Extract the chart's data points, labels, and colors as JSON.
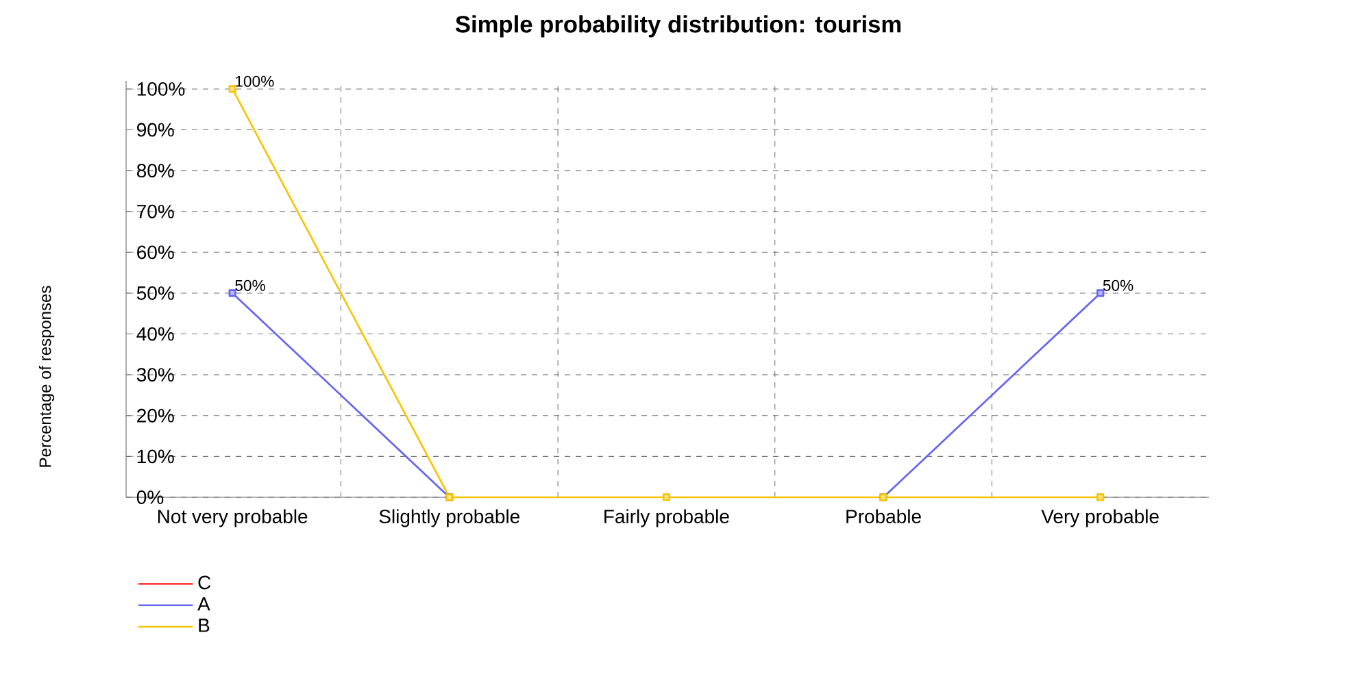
{
  "chart_data": {
    "type": "line",
    "title": "Simple probability distribution: tourism",
    "ylabel": "Percentage of responses",
    "categories": [
      "Not very probable",
      "Slightly probable",
      "Fairly probable",
      "Probable",
      "Very probable"
    ],
    "series": [
      {
        "name": "C",
        "color": "#ff4040",
        "values": [
          null,
          null,
          null,
          null,
          null
        ]
      },
      {
        "name": "A",
        "color": "#6464f5",
        "values": [
          50,
          0,
          null,
          0,
          50
        ],
        "value_labels": [
          "50%",
          null,
          null,
          null,
          "50%"
        ]
      },
      {
        "name": "B",
        "color": "#f7c400",
        "values": [
          100,
          0,
          0,
          0,
          0
        ],
        "value_labels": [
          "100%",
          null,
          null,
          null,
          null
        ]
      }
    ],
    "ylim": [
      0,
      102
    ],
    "yticks": [
      {
        "value": 0,
        "label": "0%"
      },
      {
        "value": 10,
        "label": "10%"
      },
      {
        "value": 20,
        "label": "20%"
      },
      {
        "value": 30,
        "label": "30%"
      },
      {
        "value": 40,
        "label": "40%"
      },
      {
        "value": 50,
        "label": "50%"
      },
      {
        "value": 60,
        "label": "60%"
      },
      {
        "value": 70,
        "label": "70%"
      },
      {
        "value": 80,
        "label": "80%"
      },
      {
        "value": 90,
        "label": "90%"
      },
      {
        "value": 100,
        "label": "100%"
      }
    ],
    "grid": true,
    "legend": "bottom left",
    "marker": "square",
    "line_style": "solid"
  }
}
